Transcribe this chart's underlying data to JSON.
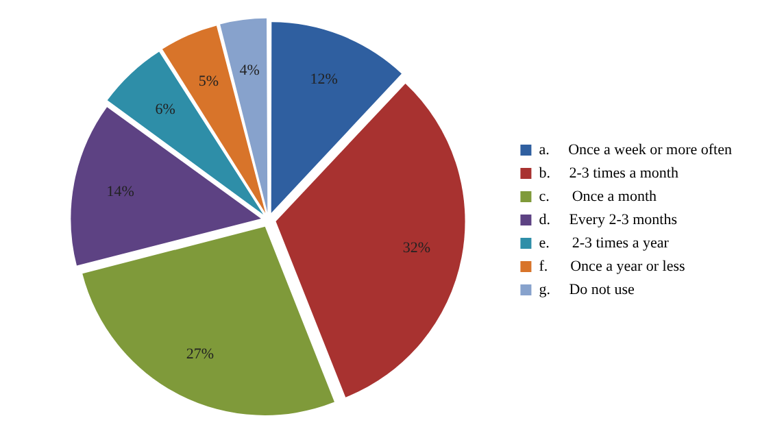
{
  "chart_data": {
    "type": "pie",
    "categories": [
      "a.     Once a week or more often",
      "b.     2-3 times a month",
      "c.      Once a month",
      "d.     Every 2-3 months",
      "e.      2-3 times a year",
      "f.      Once a year or less",
      "g.     Do not use"
    ],
    "values": [
      12,
      32,
      27,
      14,
      6,
      5,
      4
    ],
    "value_labels": [
      "12%",
      "32%",
      "27%",
      "14%",
      "6%",
      "5%",
      "4%"
    ],
    "colors": [
      "#2f5fa0",
      "#a83230",
      "#7f9a3a",
      "#5d4283",
      "#2e8ea8",
      "#d8742a",
      "#87a2cc"
    ],
    "legend": "right"
  }
}
